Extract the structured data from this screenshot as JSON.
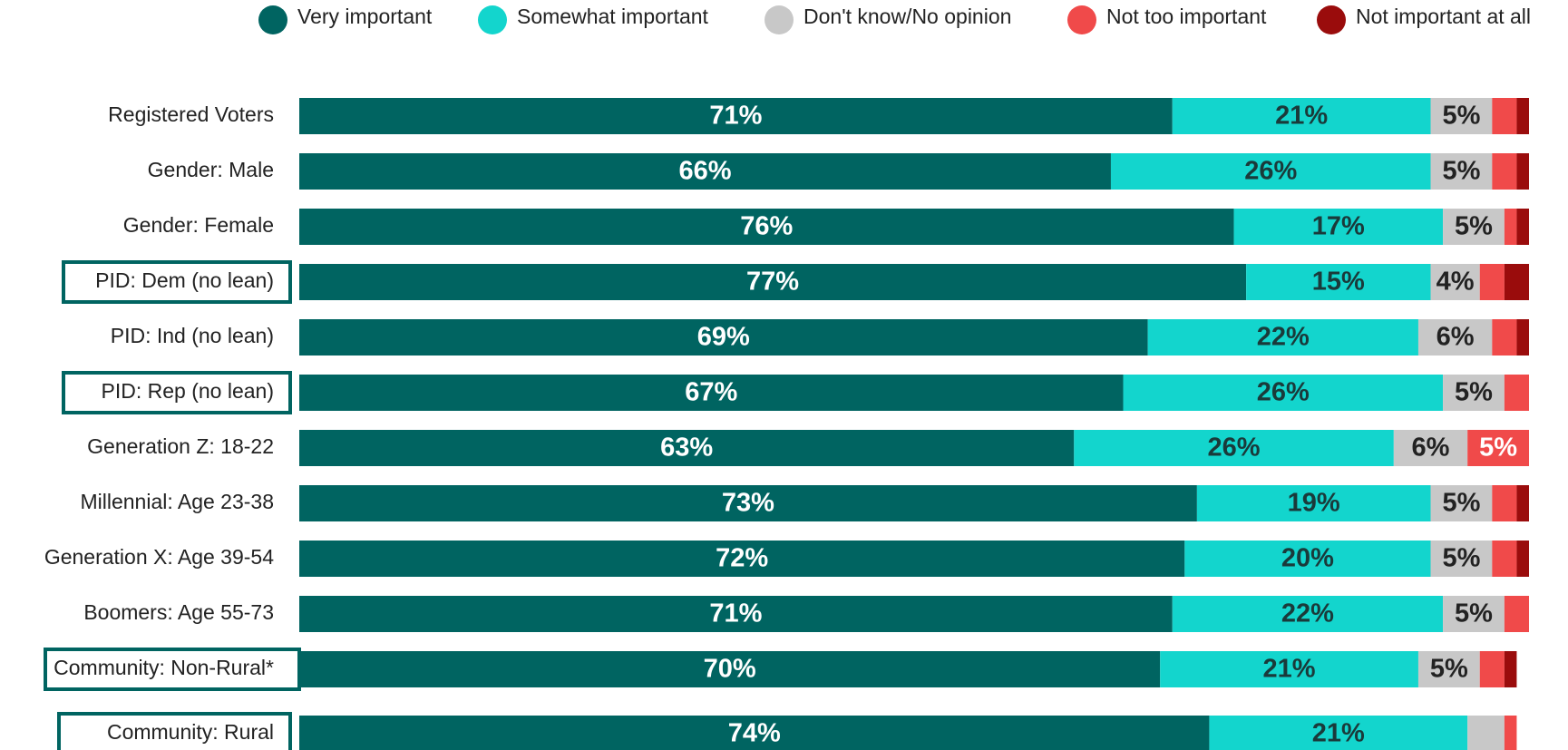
{
  "chart_data": {
    "type": "stacked-barh",
    "categories": [
      "Registered Voters",
      "Gender: Male",
      "Gender: Female",
      "PID: Dem (no lean)",
      "PID: Ind (no lean)",
      "PID: Rep (no lean)",
      "Generation Z: 18-22",
      "Millennial:  Age 23-38",
      "Generation X: Age 39-54",
      "Boomers: Age 55-73",
      "Community: Non-Rural*",
      "Community: Rural"
    ],
    "xlim": [
      0,
      100
    ],
    "series": [
      {
        "name": "Very important",
        "color": "#006461",
        "values": [
          71,
          66,
          76,
          77,
          69,
          67,
          63,
          73,
          72,
          71,
          70,
          74
        ],
        "value_labels": [
          "71%",
          "66%",
          "76%",
          "77%",
          "69%",
          "67%",
          "63%",
          "73%",
          "72%",
          "71%",
          "70%",
          "74%"
        ]
      },
      {
        "name": "Somewhat important",
        "color": "#13d5cd",
        "values": [
          21,
          26,
          17,
          15,
          22,
          26,
          26,
          19,
          20,
          22,
          21,
          21
        ],
        "value_labels": [
          "21%",
          "26%",
          "17%",
          "15%",
          "22%",
          "26%",
          "26%",
          "19%",
          "20%",
          "22%",
          "21%",
          "21%"
        ]
      },
      {
        "name": "Don't know/No opinion",
        "color": "#c8c8c8",
        "values": [
          5,
          5,
          5,
          4,
          6,
          5,
          6,
          5,
          5,
          5,
          5,
          3
        ],
        "value_labels": [
          "5%",
          "5%",
          "5%",
          "4%",
          "6%",
          "5%",
          "6%",
          "5%",
          "5%",
          "5%",
          "5%",
          null
        ]
      },
      {
        "name": "Not too important",
        "color": "#f04a4a",
        "values": [
          2,
          2,
          1,
          2,
          2,
          2,
          5,
          2,
          2,
          2,
          2,
          1
        ],
        "value_labels": [
          null,
          null,
          null,
          null,
          null,
          null,
          "5%",
          null,
          null,
          null,
          null,
          null
        ]
      },
      {
        "name": "Not important at all",
        "color": "#9a0c0c",
        "values": [
          1,
          1,
          1,
          2,
          1,
          0,
          0,
          1,
          1,
          0,
          1,
          0
        ]
      }
    ]
  }
}
